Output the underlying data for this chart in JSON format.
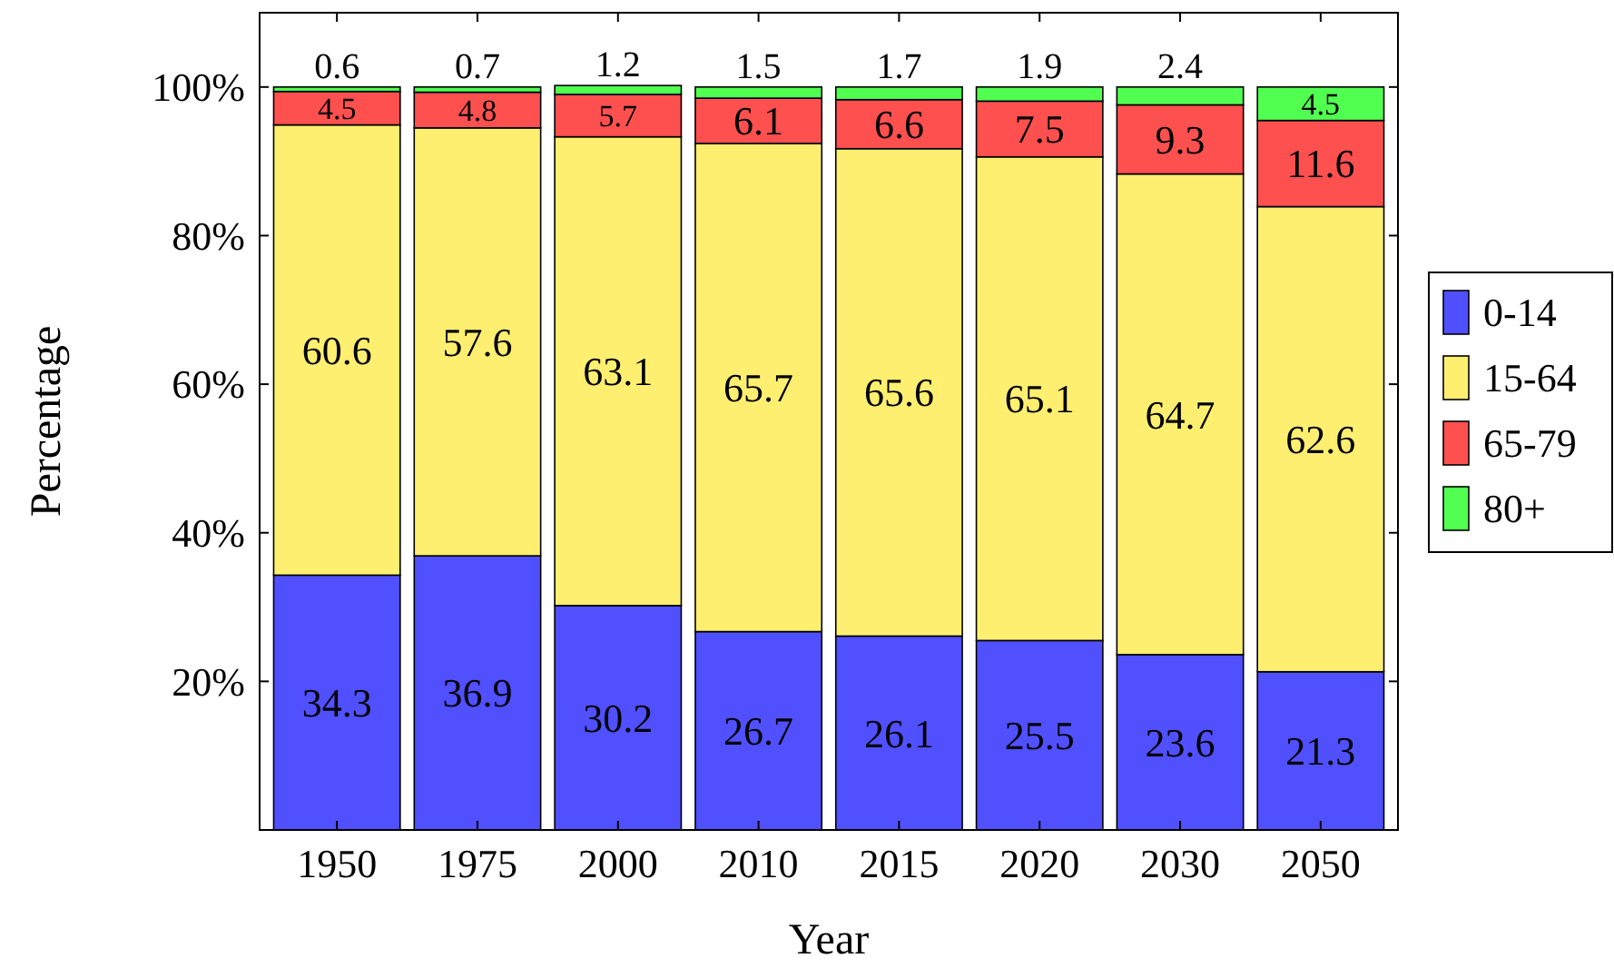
{
  "chart_data": {
    "type": "bar",
    "stacked": true,
    "xlabel": "Year",
    "ylabel": "Percentage",
    "categories": [
      "1950",
      "1975",
      "2000",
      "2010",
      "2015",
      "2020",
      "2030",
      "2050"
    ],
    "series": [
      {
        "name": "0-14",
        "color": "#5050ff",
        "values": [
          34.3,
          36.9,
          30.2,
          26.7,
          26.1,
          25.5,
          23.6,
          21.3
        ]
      },
      {
        "name": "15-64",
        "color": "#ffef70",
        "values": [
          60.6,
          57.6,
          63.1,
          65.7,
          65.6,
          65.1,
          64.7,
          62.6
        ]
      },
      {
        "name": "65-79",
        "color": "#ff5050",
        "values": [
          4.5,
          4.8,
          5.7,
          6.1,
          6.6,
          7.5,
          9.3,
          11.6
        ]
      },
      {
        "name": "80+",
        "color": "#50ff50",
        "values": [
          0.6,
          0.7,
          1.2,
          1.5,
          1.7,
          1.9,
          2.4,
          4.5
        ]
      }
    ],
    "ylim": [
      0,
      110
    ],
    "yticks": [
      {
        "value": 20,
        "label": "20%"
      },
      {
        "value": 40,
        "label": "40%"
      },
      {
        "value": 60,
        "label": "60%"
      },
      {
        "value": 80,
        "label": "80%"
      },
      {
        "value": 100,
        "label": "100%"
      }
    ],
    "data_labels": true,
    "legend": "right",
    "grid": false
  }
}
